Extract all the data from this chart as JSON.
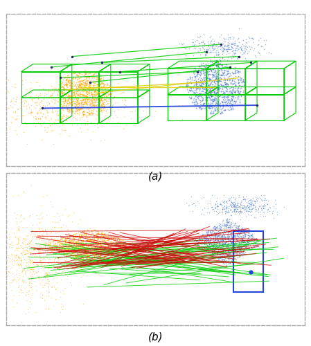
{
  "figure_width": 4.49,
  "figure_height": 5.0,
  "dpi": 100,
  "background_color": "#ffffff",
  "panel_a_label": "(a)",
  "panel_b_label": "(b)",
  "border_color": "#aaaaaa",
  "border_style": "dashed",
  "panel_bg": "#ffffff",
  "orange_color": "#FFA500",
  "blue_color": "#4472C4",
  "green_color": "#00CC00",
  "red_color": "#CC0000",
  "yellow_color": "#FFFF00",
  "label_fontsize": 11
}
